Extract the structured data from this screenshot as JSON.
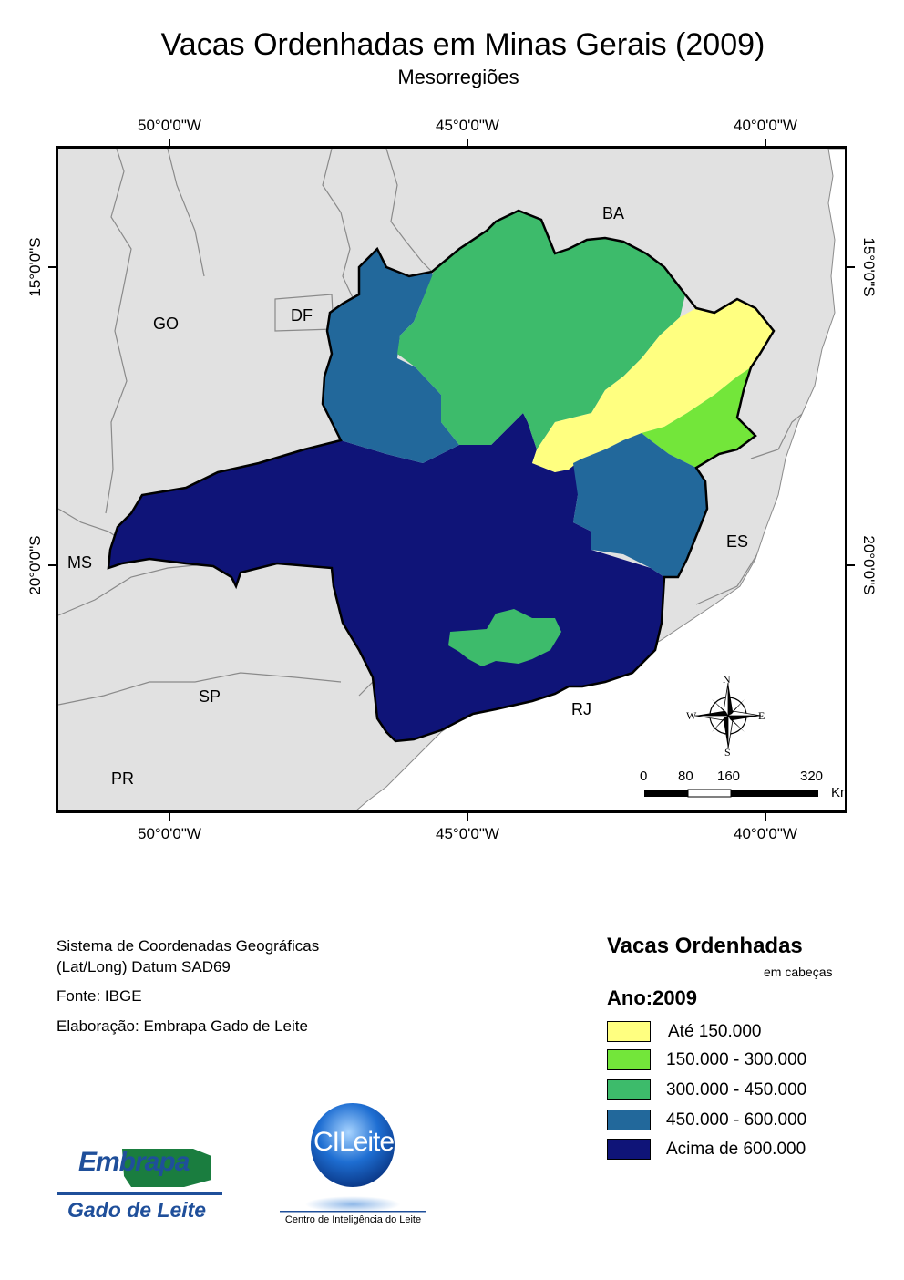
{
  "map": {
    "title": "Vacas Ordenhadas em Minas Gerais (2009)",
    "subtitle": "Mesorregiões",
    "lon_labels": [
      "50°0'0\"W",
      "45°0'0\"W",
      "40°0'0\"W"
    ],
    "lat_labels": [
      "15°0'0\"S",
      "20°0'0\"S"
    ],
    "state_labels": [
      "BA",
      "GO",
      "DF",
      "MS",
      "ES",
      "SP",
      "RJ",
      "PR"
    ],
    "compass": {
      "n": "N",
      "s": "S",
      "e": "E",
      "w": "W"
    },
    "scale": {
      "ticks": [
        "0",
        "80",
        "160",
        "320"
      ],
      "unit": "Km"
    }
  },
  "info": {
    "line1": "Sistema de Coordenadas Geográficas",
    "line2": "(Lat/Long) Datum SAD69",
    "source": "Fonte: IBGE",
    "credit": "Elaboração: Embrapa Gado de Leite"
  },
  "legend": {
    "title": "Vacas Ordenhadas",
    "unit": "em cabeças",
    "year": "Ano:2009",
    "classes": [
      {
        "label": "Até 150.000",
        "color": "#ffff80"
      },
      {
        "label": "150.000 - 300.000",
        "color": "#73e63a"
      },
      {
        "label": "300.000 - 450.000",
        "color": "#3dbb6b"
      },
      {
        "label": "450.000 - 600.000",
        "color": "#22689b"
      },
      {
        "label": "Acima de 600.000",
        "color": "#0f1478"
      }
    ]
  },
  "logos": {
    "embrapa_word": "Embrapa",
    "embrapa_sub": "Gado de Leite",
    "cileite_word": "CILeite",
    "cileite_sub": "Centro de Inteligência do Leite"
  }
}
